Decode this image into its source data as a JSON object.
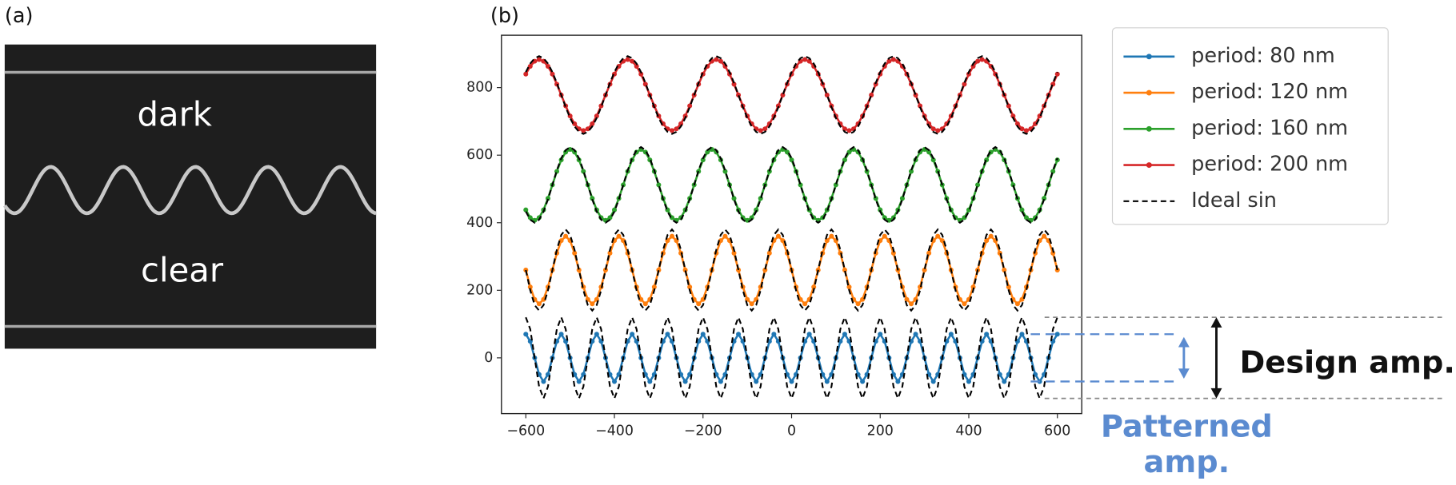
{
  "panels": [
    "(a)",
    "(b)"
  ],
  "panel_a": {
    "texts": [
      "dark",
      "clear"
    ]
  },
  "chart_data": {
    "type": "line",
    "x": [
      -600,
      -590,
      -580,
      -570,
      -560,
      -550,
      -540,
      -530,
      -520,
      -510,
      -500,
      -490,
      -480,
      -470,
      -460,
      -450,
      -440,
      -430,
      -420,
      -410,
      -400,
      -390,
      -380,
      -370,
      -360,
      -350,
      -340,
      -330,
      -320,
      -310,
      -300,
      -290,
      -280,
      -270,
      -260,
      -250,
      -240,
      -230,
      -220,
      -210,
      -200,
      -190,
      -180,
      -170,
      -160,
      -150,
      -140,
      -130,
      -120,
      -110,
      -100,
      -90,
      -80,
      -70,
      -60,
      -50,
      -40,
      -30,
      -20,
      -10,
      0,
      10,
      20,
      30,
      40,
      50,
      60,
      70,
      80,
      90,
      100,
      110,
      120,
      130,
      140,
      150,
      160,
      170,
      180,
      190,
      200,
      210,
      220,
      230,
      240,
      250,
      260,
      270,
      280,
      290,
      300,
      310,
      320,
      330,
      340,
      350,
      360,
      370,
      380,
      390,
      400,
      410,
      420,
      430,
      440,
      450,
      460,
      470,
      480,
      490,
      500,
      510,
      520,
      530,
      540,
      550,
      560,
      570,
      580,
      590,
      600
    ],
    "xlim": [
      -655,
      655
    ],
    "ylim": [
      -165,
      955
    ],
    "xticks": [
      {
        "value": -600,
        "label": "−600"
      },
      {
        "value": -400,
        "label": "−400"
      },
      {
        "value": -200,
        "label": "−200"
      },
      0,
      200,
      400,
      600
    ],
    "yticks": [
      0,
      200,
      400,
      600,
      800
    ],
    "legend": "outside right",
    "ideal_name": "Ideal sin",
    "ideal_color": "#000000",
    "series": [
      {
        "name": "period: 80 nm",
        "color": "#1f77b4",
        "values": [
          70,
          49,
          0,
          -49,
          -70,
          -49,
          0,
          49,
          70,
          49,
          0,
          -49,
          -70,
          -49,
          0,
          49,
          70,
          49,
          0,
          -49,
          -70,
          -49,
          0,
          49,
          70,
          49,
          0,
          -49,
          -70,
          -49,
          0,
          49,
          70,
          49,
          0,
          -49,
          -70,
          -49,
          0,
          49,
          70,
          49,
          0,
          -49,
          -70,
          -49,
          0,
          49,
          70,
          49,
          0,
          -49,
          -70,
          -49,
          0,
          49,
          70,
          49,
          0,
          -49,
          -70,
          -49,
          0,
          49,
          70,
          49,
          0,
          -49,
          -70,
          -49,
          0,
          49,
          70,
          49,
          0,
          -49,
          -70,
          -49,
          0,
          49,
          70,
          49,
          0,
          -49,
          -70,
          -49,
          0,
          49,
          70,
          49,
          0,
          -49,
          -70,
          -49,
          0,
          49,
          70,
          49,
          0,
          -49,
          -70,
          -49,
          0,
          49,
          70,
          49,
          0,
          -49,
          -70,
          -49,
          0,
          49,
          70,
          49,
          0,
          -49,
          -70,
          -49,
          0,
          49,
          70
        ],
        "ideal": [
          120,
          85,
          0,
          -85,
          -120,
          -85,
          0,
          85,
          120,
          85,
          0,
          -85,
          -120,
          -85,
          0,
          85,
          120,
          85,
          0,
          -85,
          -120,
          -85,
          0,
          85,
          120,
          85,
          0,
          -85,
          -120,
          -85,
          0,
          85,
          120,
          85,
          0,
          -85,
          -120,
          -85,
          0,
          85,
          120,
          85,
          0,
          -85,
          -120,
          -85,
          0,
          85,
          120,
          85,
          0,
          -85,
          -120,
          -85,
          0,
          85,
          120,
          85,
          0,
          -85,
          -120,
          -85,
          0,
          85,
          120,
          85,
          0,
          -85,
          -120,
          -85,
          0,
          85,
          120,
          85,
          0,
          -85,
          -120,
          -85,
          0,
          85,
          120,
          85,
          0,
          -85,
          -120,
          -85,
          0,
          85,
          120,
          85,
          0,
          -85,
          -120,
          -85,
          0,
          85,
          120,
          85,
          0,
          -85,
          -120,
          -85,
          0,
          85,
          120,
          85,
          0,
          -85,
          -120,
          -85,
          0,
          85,
          120,
          85,
          0,
          -85,
          -120,
          -85,
          0,
          85,
          120
        ]
      },
      {
        "name": "period: 120 nm",
        "color": "#ff7f0e",
        "values": [
          260,
          210,
          173,
          160,
          173,
          210,
          260,
          310,
          347,
          360,
          347,
          310,
          260,
          210,
          173,
          160,
          173,
          210,
          260,
          310,
          347,
          360,
          347,
          310,
          260,
          210,
          173,
          160,
          173,
          210,
          260,
          310,
          347,
          360,
          347,
          310,
          260,
          210,
          173,
          160,
          173,
          210,
          260,
          310,
          347,
          360,
          347,
          310,
          260,
          210,
          173,
          160,
          173,
          210,
          260,
          310,
          347,
          360,
          347,
          310,
          260,
          210,
          173,
          160,
          173,
          210,
          260,
          310,
          347,
          360,
          347,
          310,
          260,
          210,
          173,
          160,
          173,
          210,
          260,
          310,
          347,
          360,
          347,
          310,
          260,
          210,
          173,
          160,
          173,
          210,
          260,
          310,
          347,
          360,
          347,
          310,
          260,
          210,
          173,
          160,
          173,
          210,
          260,
          310,
          347,
          360,
          347,
          310,
          260,
          210,
          173,
          160,
          173,
          210,
          260,
          310,
          347,
          360,
          347,
          310,
          260
        ],
        "ideal": [
          260,
          200,
          156,
          140,
          156,
          200,
          260,
          320,
          364,
          380,
          364,
          320,
          260,
          200,
          156,
          140,
          156,
          200,
          260,
          320,
          364,
          380,
          364,
          320,
          260,
          200,
          156,
          140,
          156,
          200,
          260,
          320,
          364,
          380,
          364,
          320,
          260,
          200,
          156,
          140,
          156,
          200,
          260,
          320,
          364,
          380,
          364,
          320,
          260,
          200,
          156,
          140,
          156,
          200,
          260,
          320,
          364,
          380,
          364,
          320,
          260,
          200,
          156,
          140,
          156,
          200,
          260,
          320,
          364,
          380,
          364,
          320,
          260,
          200,
          156,
          140,
          156,
          200,
          260,
          320,
          364,
          380,
          364,
          320,
          260,
          200,
          156,
          140,
          156,
          200,
          260,
          320,
          364,
          380,
          364,
          320,
          260,
          200,
          156,
          140,
          156,
          200,
          260,
          320,
          364,
          380,
          364,
          320,
          260,
          200,
          156,
          140,
          156,
          200,
          260,
          320,
          364,
          380,
          364,
          320,
          260
        ]
      },
      {
        "name": "period: 160 nm",
        "color": "#2ca02c",
        "values": [
          438,
          415,
          407,
          415,
          438,
          472,
          512,
          552,
          586,
          609,
          617,
          609,
          586,
          552,
          512,
          472,
          438,
          415,
          407,
          415,
          438,
          472,
          512,
          552,
          586,
          609,
          617,
          609,
          586,
          552,
          512,
          472,
          438,
          415,
          407,
          415,
          438,
          472,
          512,
          552,
          586,
          609,
          617,
          609,
          586,
          552,
          512,
          472,
          438,
          415,
          407,
          415,
          438,
          472,
          512,
          552,
          586,
          609,
          617,
          609,
          586,
          552,
          512,
          472,
          438,
          415,
          407,
          415,
          438,
          472,
          512,
          552,
          586,
          609,
          617,
          609,
          586,
          552,
          512,
          472,
          438,
          415,
          407,
          415,
          438,
          472,
          512,
          552,
          586,
          609,
          617,
          609,
          586,
          552,
          512,
          472,
          438,
          415,
          407,
          415,
          438,
          472,
          512,
          552,
          586,
          609,
          617,
          609,
          586,
          552,
          512,
          472,
          438,
          415,
          407,
          415,
          438,
          472,
          512,
          552,
          586
        ],
        "ideal": [
          433,
          409,
          400,
          409,
          433,
          469,
          512,
          555,
          591,
          615,
          624,
          615,
          591,
          555,
          512,
          469,
          433,
          409,
          400,
          409,
          433,
          469,
          512,
          555,
          591,
          615,
          624,
          615,
          591,
          555,
          512,
          469,
          433,
          409,
          400,
          409,
          433,
          469,
          512,
          555,
          591,
          615,
          624,
          615,
          591,
          555,
          512,
          469,
          433,
          409,
          400,
          409,
          433,
          469,
          512,
          555,
          591,
          615,
          624,
          615,
          591,
          555,
          512,
          469,
          433,
          409,
          400,
          409,
          433,
          469,
          512,
          555,
          591,
          615,
          624,
          615,
          591,
          555,
          512,
          469,
          433,
          409,
          400,
          409,
          433,
          469,
          512,
          555,
          591,
          615,
          624,
          615,
          591,
          555,
          512,
          469,
          433,
          409,
          400,
          409,
          433,
          469,
          512,
          555,
          591,
          615,
          624,
          615,
          591,
          555,
          512,
          469,
          433,
          409,
          400,
          409,
          433,
          469,
          512,
          555,
          591
        ]
      },
      {
        "name": "period: 200 nm",
        "color": "#d62728",
        "values": [
          840,
          863,
          878,
          883,
          878,
          863,
          840,
          810,
          778,
          746,
          716,
          693,
          678,
          673,
          678,
          693,
          716,
          746,
          778,
          810,
          840,
          863,
          878,
          883,
          878,
          863,
          840,
          810,
          778,
          746,
          716,
          693,
          678,
          673,
          678,
          693,
          716,
          746,
          778,
          810,
          840,
          863,
          878,
          883,
          878,
          863,
          840,
          810,
          778,
          746,
          716,
          693,
          678,
          673,
          678,
          693,
          716,
          746,
          778,
          810,
          840,
          863,
          878,
          883,
          878,
          863,
          840,
          810,
          778,
          746,
          716,
          693,
          678,
          673,
          678,
          693,
          716,
          746,
          778,
          810,
          840,
          863,
          878,
          883,
          878,
          863,
          840,
          810,
          778,
          746,
          716,
          693,
          678,
          673,
          678,
          693,
          716,
          746,
          778,
          810,
          840,
          863,
          878,
          883,
          878,
          863,
          840,
          810,
          778,
          746,
          716,
          693,
          678,
          673,
          678,
          693,
          716,
          746,
          778,
          810,
          840
        ],
        "ideal": [
          846,
          871,
          887,
          893,
          887,
          871,
          846,
          814,
          778,
          742,
          710,
          685,
          669,
          663,
          669,
          685,
          710,
          742,
          778,
          814,
          846,
          871,
          887,
          893,
          887,
          871,
          846,
          814,
          778,
          742,
          710,
          685,
          669,
          663,
          669,
          685,
          710,
          742,
          778,
          814,
          846,
          871,
          887,
          893,
          887,
          871,
          846,
          814,
          778,
          742,
          710,
          685,
          669,
          663,
          669,
          685,
          710,
          742,
          778,
          814,
          846,
          871,
          887,
          893,
          887,
          871,
          846,
          814,
          778,
          742,
          710,
          685,
          669,
          663,
          669,
          685,
          710,
          742,
          778,
          814,
          846,
          871,
          887,
          893,
          887,
          871,
          846,
          814,
          778,
          742,
          710,
          685,
          669,
          663,
          669,
          685,
          710,
          742,
          778,
          814,
          846,
          871,
          887,
          893,
          887,
          871,
          846,
          814,
          778,
          742,
          710,
          685,
          669,
          663,
          669,
          685,
          710,
          742,
          778,
          814,
          846
        ]
      }
    ],
    "annotations": {
      "design": "Design amp.",
      "patterned": [
        "Patterned",
        "amp."
      ]
    }
  }
}
